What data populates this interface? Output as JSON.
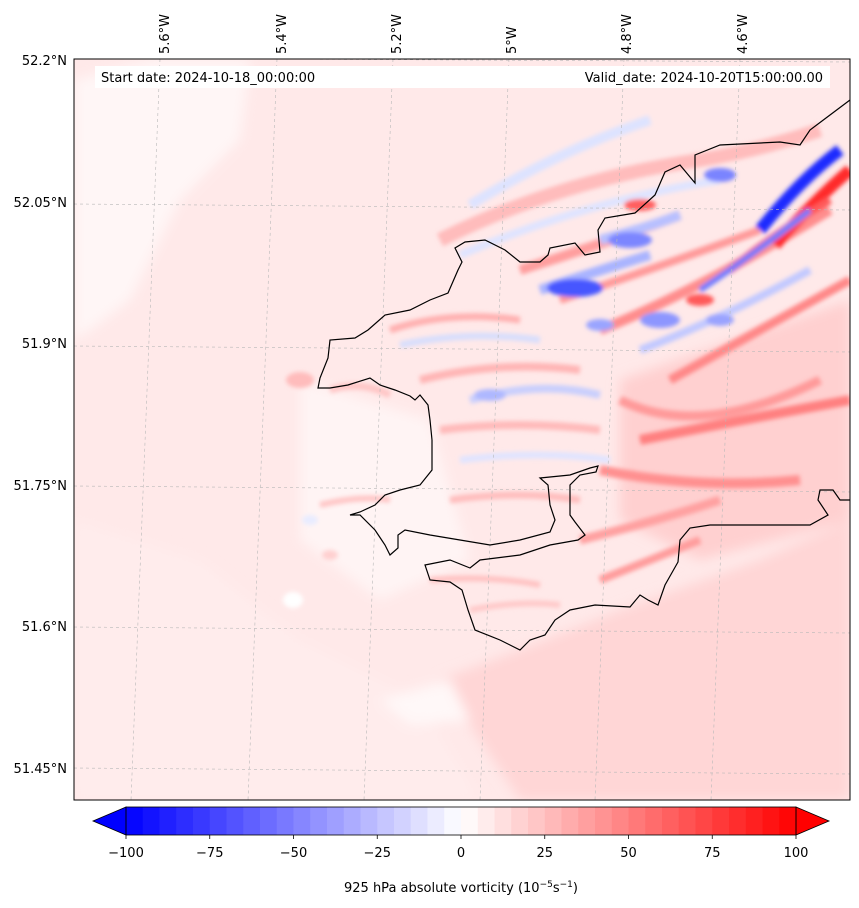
{
  "map": {
    "start_label": "Start date: 2024-10-18_00:00:00",
    "valid_label": "Valid_date: 2024-10-20T15:00:00.00",
    "lon_ticks": [
      "5.6°W",
      "5.4°W",
      "5.2°W",
      "5°W",
      "4.8°W",
      "4.6°W"
    ],
    "lat_ticks": [
      "52.2°N",
      "52.05°N",
      "51.9°N",
      "51.75°N",
      "51.6°N",
      "51.45°N"
    ],
    "field": "925 hPa absolute vorticity",
    "colormap": "bwr",
    "coastline_color": "#000000"
  },
  "colorbar": {
    "ticks": [
      "−100",
      "−75",
      "−50",
      "−25",
      "0",
      "25",
      "50",
      "75",
      "100"
    ],
    "vmin": -100,
    "vmax": 100,
    "levels": 40,
    "label_main": "925 hPa absolute vorticity (10",
    "label_exp1": "−5",
    "label_mid": "s",
    "label_exp2": "−1",
    "label_end": ")"
  }
}
